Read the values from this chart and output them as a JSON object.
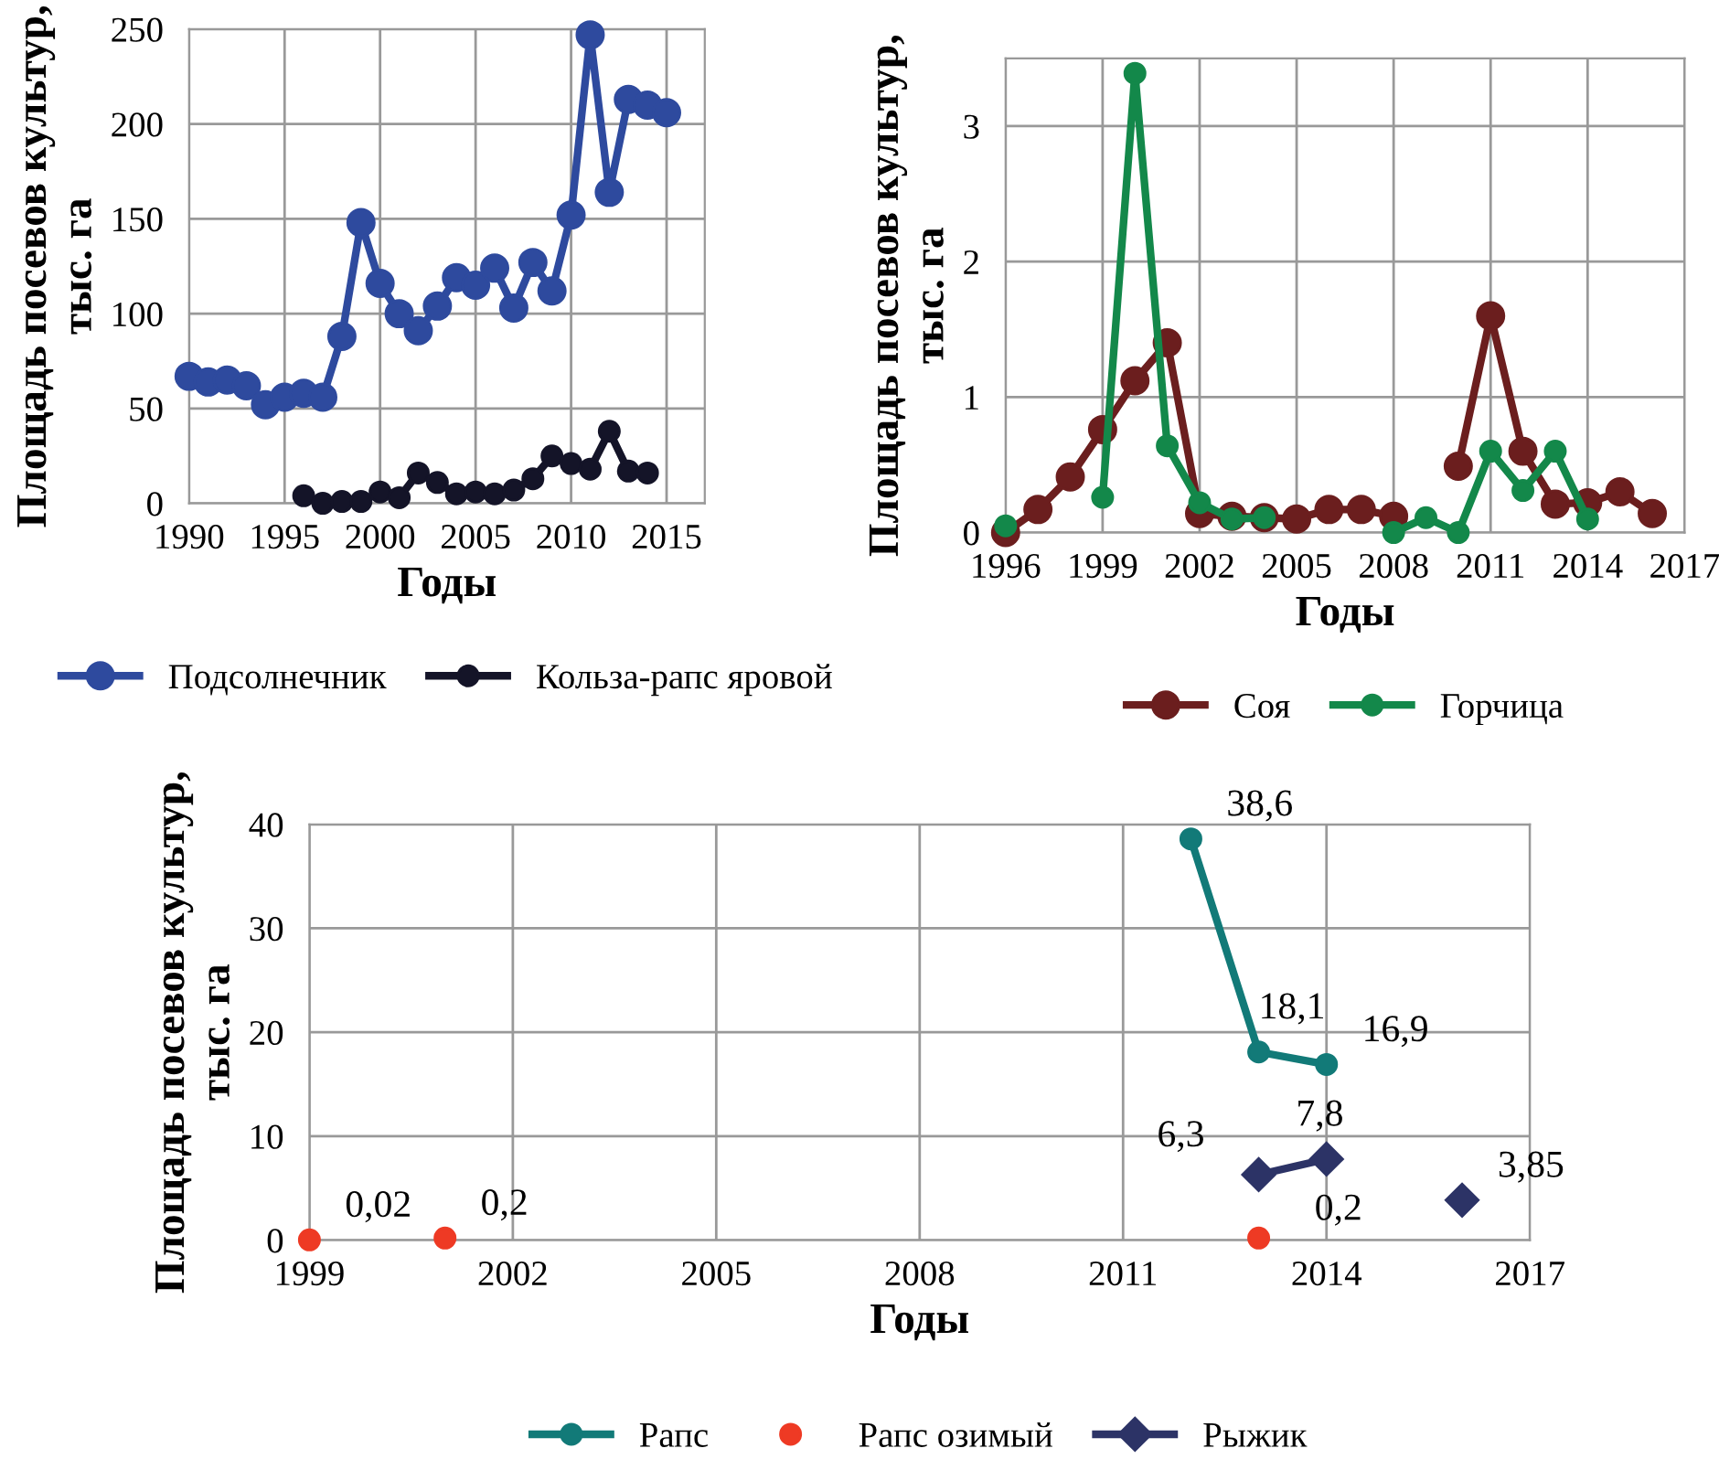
{
  "chart_data": [
    {
      "type": "line",
      "ylabel": "Площадь посевов культур,\nтыс. га",
      "xlabel": "Годы",
      "xlim": [
        1990,
        2017
      ],
      "xticks": [
        1990,
        1995,
        2000,
        2005,
        2010,
        2015
      ],
      "ylim": [
        0,
        250
      ],
      "yticks": [
        0,
        50,
        100,
        150,
        200,
        250
      ],
      "grid": true,
      "legend": "bottom",
      "marker": "circle",
      "series": [
        {
          "name": "Подсолнечник",
          "color": "#2e4a9e",
          "x": [
            1990,
            1991,
            1992,
            1993,
            1994,
            1995,
            1996,
            1997,
            1998,
            1999,
            2000,
            2001,
            2002,
            2003,
            2004,
            2005,
            2006,
            2007,
            2008,
            2009,
            2010,
            2011,
            2012,
            2013,
            2014,
            2015
          ],
          "values": [
            67,
            64,
            65,
            62,
            52,
            56,
            58,
            56,
            88,
            148,
            116,
            100,
            91,
            104,
            119,
            115,
            124,
            103,
            127,
            112,
            152,
            247,
            164,
            213,
            210,
            206
          ]
        },
        {
          "name": "Кольза-рапс яровой",
          "color": "#141428",
          "x": [
            1996,
            1997,
            1998,
            1999,
            2000,
            2001,
            2002,
            2003,
            2004,
            2005,
            2006,
            2007,
            2008,
            2009,
            2010,
            2011,
            2012,
            2013,
            2014
          ],
          "values": [
            4,
            0,
            1,
            1,
            6,
            3,
            16,
            11,
            5,
            6,
            5,
            7,
            13,
            25,
            21,
            18,
            38,
            17,
            16
          ]
        }
      ]
    },
    {
      "type": "line",
      "ylabel": "Площадь посевов культур,\nтыс. га",
      "xlabel": "Годы",
      "xlim": [
        1996,
        2017
      ],
      "xticks": [
        1996,
        1999,
        2002,
        2005,
        2008,
        2011,
        2014,
        2017
      ],
      "ylim": [
        0,
        3.5
      ],
      "yticks": [
        0,
        1,
        2,
        3
      ],
      "grid": true,
      "legend": "bottom",
      "marker": "circle",
      "series": [
        {
          "name": "Соя",
          "color": "#6b1e1e",
          "x": [
            1996,
            1997,
            1998,
            1999,
            2000,
            2001,
            2002,
            2003,
            2004,
            2005,
            2006,
            2007,
            2008,
            2009,
            2010,
            2011,
            2012,
            2013,
            2014,
            2015,
            2016
          ],
          "values": [
            0,
            0.17,
            0.41,
            0.76,
            1.12,
            1.4,
            0.14,
            0.12,
            0.11,
            0.1,
            0.17,
            0.17,
            0.12,
            null,
            0.49,
            1.6,
            0.6,
            0.21,
            0.22,
            0.3,
            0.14
          ]
        },
        {
          "name": "Горчица",
          "color": "#13884a",
          "x": [
            1996,
            1997,
            1998,
            1999,
            2000,
            2001,
            2002,
            2003,
            2004,
            2005,
            2006,
            2007,
            2008,
            2009,
            2010,
            2011,
            2012,
            2013,
            2014
          ],
          "values": [
            0.05,
            null,
            null,
            0.26,
            3.39,
            0.64,
            0.22,
            0.1,
            0.11,
            null,
            null,
            null,
            0,
            0.11,
            0,
            0.6,
            0.31,
            0.6,
            0.1
          ]
        }
      ]
    },
    {
      "type": "line",
      "ylabel": "Площадь посевов культур,\nтыс. га",
      "xlabel": "Годы",
      "xlim": [
        1999,
        2017
      ],
      "xticks": [
        1999,
        2002,
        2005,
        2008,
        2011,
        2014,
        2017
      ],
      "ylim": [
        0,
        40
      ],
      "yticks": [
        0,
        10,
        20,
        30,
        40
      ],
      "grid": true,
      "legend": "bottom",
      "series": [
        {
          "name": "Рапс",
          "color": "#127a78",
          "marker": "circle",
          "x": [
            2012,
            2013,
            2014
          ],
          "values": [
            38.6,
            18.1,
            16.9
          ],
          "value_labels": [
            "38,6",
            "18,1",
            "16,9"
          ]
        },
        {
          "name": "Рапс озимый",
          "type": "scatter",
          "color": "#ee3a24",
          "marker": "circle",
          "x": [
            1999,
            2001,
            2013
          ],
          "values": [
            0.02,
            0.2,
            0.2
          ],
          "value_labels": [
            "0,02",
            "0,2",
            "0,2"
          ]
        },
        {
          "name": "Рыжик",
          "color": "#2c3366",
          "marker": "diamond",
          "x": [
            2013,
            2014,
            2015,
            2016
          ],
          "values": [
            6.3,
            7.8,
            null,
            3.85
          ],
          "value_labels": [
            "6,3",
            "7,8",
            null,
            "3,85"
          ]
        }
      ]
    }
  ]
}
